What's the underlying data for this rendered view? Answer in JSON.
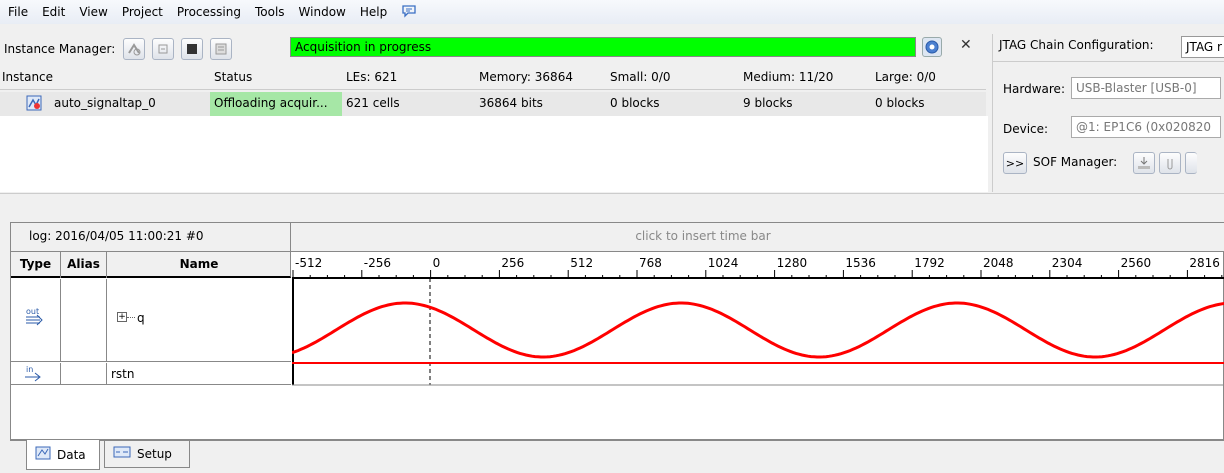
{
  "menu": [
    "File",
    "Edit",
    "View",
    "Project",
    "Processing",
    "Tools",
    "Window",
    "Help"
  ],
  "instance_manager": {
    "label": "Instance Manager:",
    "status_text": "Acquisition in progress",
    "status_color": "#00ff00",
    "columns": [
      "Instance",
      "Status",
      "LEs: 621",
      "Memory: 36864",
      "Small: 0/0",
      "Medium: 11/20",
      "Large: 0/0"
    ],
    "rows": [
      {
        "instance": "auto_signaltap_0",
        "status": "Offloading acquir...",
        "les": "621 cells",
        "memory": "36864 bits",
        "small": "0 blocks",
        "medium": "9 blocks",
        "large": "0 blocks"
      }
    ]
  },
  "jtag": {
    "title": "JTAG Chain Configuration:",
    "title_box": "JTAG r",
    "hardware_label": "Hardware:",
    "hardware_value": "USB-Blaster [USB-0]",
    "device_label": "Device:",
    "device_value": "@1: EP1C6 (0x020820",
    "expand_button": ">>",
    "sof_label": "SOF Manager:"
  },
  "signaltap": {
    "log_label": "log: 2016/04/05 11:00:21  #0",
    "timebar_hint": "click to insert time bar",
    "col_type": "Type",
    "col_alias": "Alias",
    "col_name": "Name",
    "ticks": [
      "-512",
      "-256",
      "0",
      "256",
      "512",
      "768",
      "1024",
      "1280",
      "1536",
      "1792",
      "2048",
      "2304",
      "2560",
      "2816"
    ],
    "signals": [
      {
        "type_icon": "output-bus-icon",
        "type_text": "out",
        "expander": "+",
        "name": "q"
      },
      {
        "type_icon": "input-pin-icon",
        "type_text": "in",
        "name": "rstn"
      }
    ],
    "wave_color": "#ff0000"
  },
  "tabs": [
    {
      "label": "Data",
      "active": true
    },
    {
      "label": "Setup",
      "active": false
    }
  ]
}
